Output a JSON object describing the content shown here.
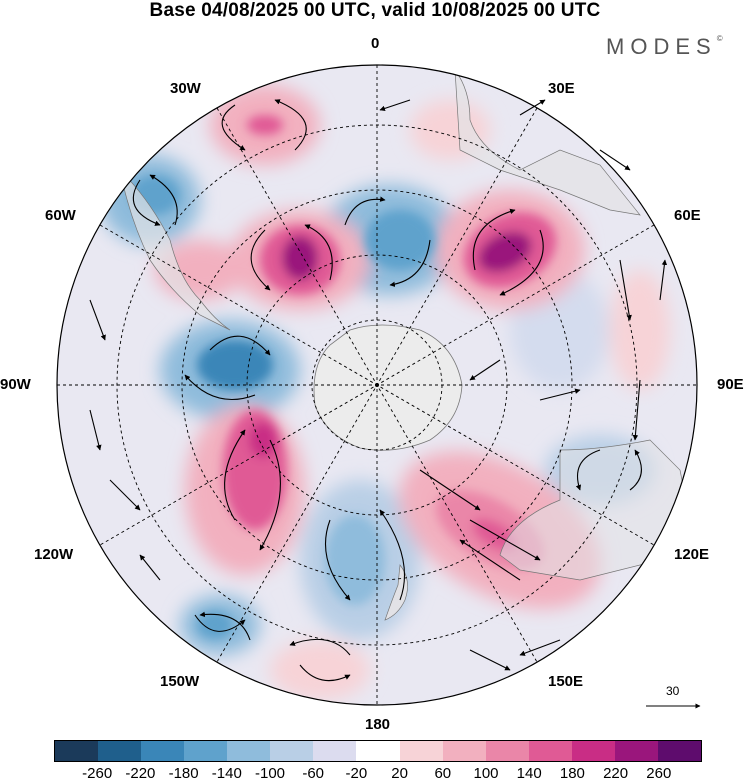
{
  "title": "Base 04/08/2025 00 UTC, valid 10/08/2025 00 UTC",
  "brand": "MODES",
  "brand_mark": "©",
  "longitude_labels": {
    "lon_0": "0",
    "lon_30E": "30E",
    "lon_60E": "60E",
    "lon_90E": "90E",
    "lon_120E": "120E",
    "lon_150E": "150E",
    "lon_180": "180",
    "lon_150W": "150W",
    "lon_120W": "120W",
    "lon_90W": "90W",
    "lon_60W": "60W",
    "lon_30W": "30W"
  },
  "vector_scale_value": "30",
  "colorbar": {
    "colors": [
      "#1b3a5a",
      "#1f5f8c",
      "#3a86b8",
      "#5fa2cc",
      "#8fbcdc",
      "#b9cfe6",
      "#dcdcef",
      "#ffffff",
      "#f7d3d7",
      "#f2b0bf",
      "#ea86a8",
      "#e05a95",
      "#c92d85",
      "#9a167c",
      "#5e0c6d"
    ],
    "labels": [
      "-260",
      "-220",
      "-180",
      "-140",
      "-100",
      "-60",
      "-20",
      "20",
      "60",
      "100",
      "140",
      "180",
      "220",
      "260"
    ]
  }
}
